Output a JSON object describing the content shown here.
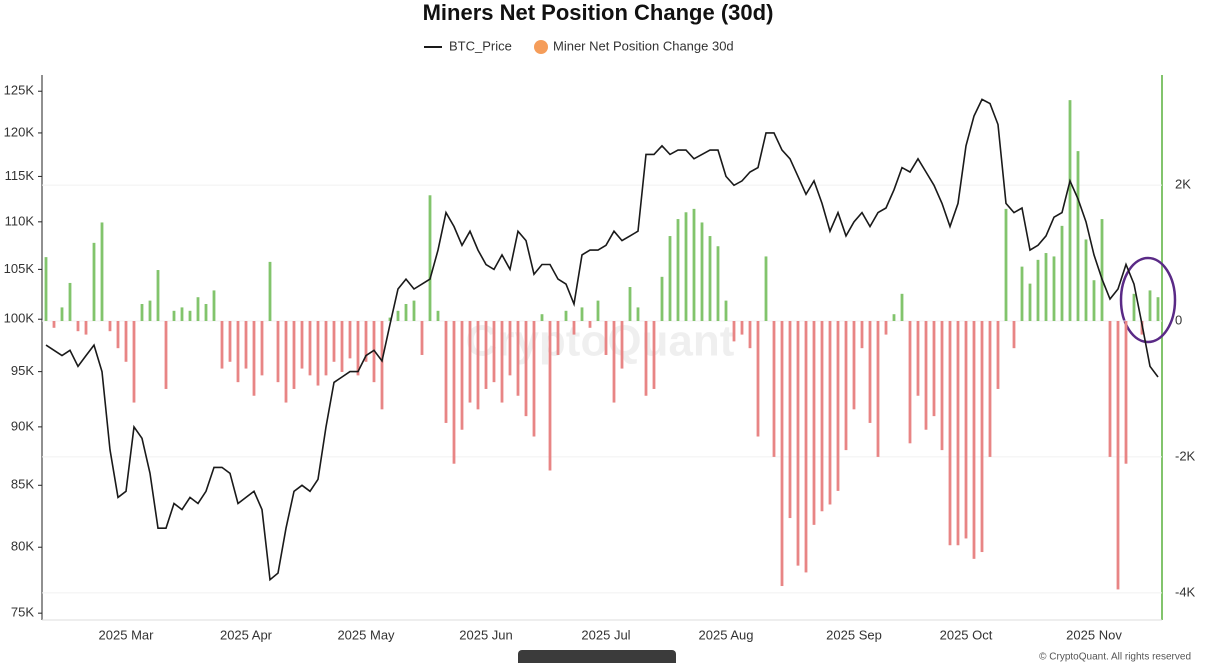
{
  "chart_data": {
    "type": "bar_line",
    "title": "Miners Net Position Change (30d)",
    "watermark": "CryptoQuant",
    "footer": "© CryptoQuant. All rights reserved",
    "categories": [
      null,
      null,
      null,
      null,
      null,
      null,
      null,
      null,
      null,
      null,
      "2025 Mar",
      null,
      null,
      null,
      null,
      null,
      null,
      null,
      null,
      null,
      null,
      null,
      null,
      null,
      null,
      "2025 Apr",
      null,
      null,
      null,
      null,
      null,
      null,
      null,
      null,
      null,
      null,
      null,
      null,
      null,
      null,
      "2025 May",
      null,
      null,
      null,
      null,
      null,
      null,
      null,
      null,
      null,
      null,
      null,
      null,
      null,
      null,
      "2025 Jun",
      null,
      null,
      null,
      null,
      null,
      null,
      null,
      null,
      null,
      null,
      null,
      null,
      null,
      null,
      "2025 Jul",
      null,
      null,
      null,
      null,
      null,
      null,
      null,
      null,
      null,
      null,
      null,
      null,
      null,
      null,
      "2025 Aug",
      null,
      null,
      null,
      null,
      null,
      null,
      null,
      null,
      null,
      null,
      null,
      null,
      null,
      null,
      null,
      "2025 Sep",
      null,
      null,
      null,
      null,
      null,
      null,
      null,
      null,
      null,
      null,
      null,
      null,
      null,
      "2025 Oct",
      null,
      null,
      null,
      null,
      null,
      null,
      null,
      null,
      null,
      null,
      null,
      null,
      null,
      null,
      null,
      "2025 Nov",
      null,
      null,
      null,
      null,
      null,
      null,
      null,
      null
    ],
    "series": [
      {
        "name": "BTC_Price",
        "kind": "line",
        "axis": "y",
        "color": "#1a1a1a",
        "values": [
          97500,
          97000,
          96500,
          97000,
          95500,
          96500,
          97500,
          95000,
          88000,
          84000,
          84500,
          90000,
          89000,
          86000,
          81500,
          81500,
          83500,
          83000,
          84000,
          83500,
          84500,
          86500,
          86500,
          86000,
          83500,
          84000,
          84500,
          83000,
          77500,
          78000,
          81500,
          84500,
          85000,
          84500,
          85500,
          90000,
          94000,
          94500,
          95000,
          95000,
          96500,
          97000,
          96000,
          99500,
          103000,
          104000,
          103000,
          103500,
          104000,
          107000,
          111000,
          109500,
          107500,
          109000,
          107000,
          105500,
          105000,
          106500,
          105000,
          109000,
          108000,
          104500,
          105500,
          105500,
          104000,
          103500,
          101500,
          106500,
          107000,
          107000,
          107500,
          109000,
          108000,
          108500,
          109000,
          117500,
          117500,
          118500,
          117500,
          118000,
          118000,
          117000,
          117500,
          118000,
          118000,
          115000,
          114000,
          114500,
          115500,
          116000,
          120000,
          120000,
          118000,
          117000,
          115000,
          113000,
          114500,
          112000,
          109000,
          111000,
          108500,
          110000,
          111000,
          109500,
          111000,
          111500,
          113500,
          116000,
          115500,
          117000,
          115500,
          114000,
          112000,
          109500,
          112000,
          118500,
          122000,
          124000,
          123500,
          121000,
          112000,
          111000,
          111500,
          107000,
          107500,
          108500,
          110500,
          111000,
          114500,
          112500,
          110000,
          106500,
          104000,
          102000,
          103000,
          105500,
          103500,
          99500,
          95500,
          94500
        ]
      },
      {
        "name": "Miner Net Position Change 30d",
        "kind": "bar",
        "axis": "y2",
        "color": "#f59d5a",
        "positive_color": "#82c46c",
        "negative_color": "#e88585",
        "values": [
          940,
          -100,
          200,
          560,
          -150,
          -200,
          1150,
          1450,
          -150,
          -400,
          -600,
          -1200,
          250,
          300,
          750,
          -1000,
          150,
          200,
          150,
          350,
          250,
          450,
          -700,
          -600,
          -900,
          -700,
          -1100,
          -800,
          870,
          -900,
          -1200,
          -1000,
          -700,
          -800,
          -950,
          -800,
          -600,
          -750,
          -550,
          -800,
          -600,
          -900,
          -1300,
          50,
          150,
          250,
          300,
          -500,
          1850,
          150,
          -1500,
          -2100,
          -1600,
          -1200,
          -1300,
          -1000,
          -900,
          -1200,
          -800,
          -1100,
          -1400,
          -1700,
          100,
          -2200,
          -500,
          150,
          -200,
          200,
          -100,
          300,
          -500,
          -1200,
          -700,
          500,
          200,
          -1100,
          -1000,
          650,
          1250,
          1500,
          1600,
          1650,
          1450,
          1250,
          1100,
          300,
          -300,
          -200,
          -400,
          -1700,
          950,
          -2000,
          -3900,
          -2900,
          -3600,
          -3700,
          -3000,
          -2800,
          -2700,
          -2500,
          -1900,
          -1300,
          -400,
          -1500,
          -2000,
          -200,
          100,
          400,
          -1800,
          -1100,
          -1600,
          -1400,
          -1900,
          -3300,
          -3300,
          -3200,
          -3500,
          -3400,
          -2000,
          -1000,
          1650,
          -400,
          800,
          550,
          900,
          1000,
          950,
          1400,
          3250,
          2500,
          1200,
          600,
          1500,
          -2000,
          -3950,
          -2100,
          400,
          -200,
          450,
          350
        ]
      }
    ],
    "y_scale": "log",
    "ylim": [
      74500,
      127000
    ],
    "yticks": [
      {
        "value": 75000,
        "label": "75K"
      },
      {
        "value": 80000,
        "label": "80K"
      },
      {
        "value": 85000,
        "label": "85K"
      },
      {
        "value": 90000,
        "label": "90K"
      },
      {
        "value": 95000,
        "label": "95K"
      },
      {
        "value": 100000,
        "label": "100K"
      },
      {
        "value": 105000,
        "label": "105K"
      },
      {
        "value": 110000,
        "label": "110K"
      },
      {
        "value": 115000,
        "label": "115K"
      },
      {
        "value": 120000,
        "label": "120K"
      },
      {
        "value": 125000,
        "label": "125K"
      }
    ],
    "y2lim": [
      -4400,
      3620
    ],
    "y2ticks": [
      {
        "value": -4000,
        "label": "-4K"
      },
      {
        "value": -2000,
        "label": "-2K"
      },
      0,
      {
        "value": 2000,
        "label": "2K"
      }
    ],
    "grid": true
  }
}
